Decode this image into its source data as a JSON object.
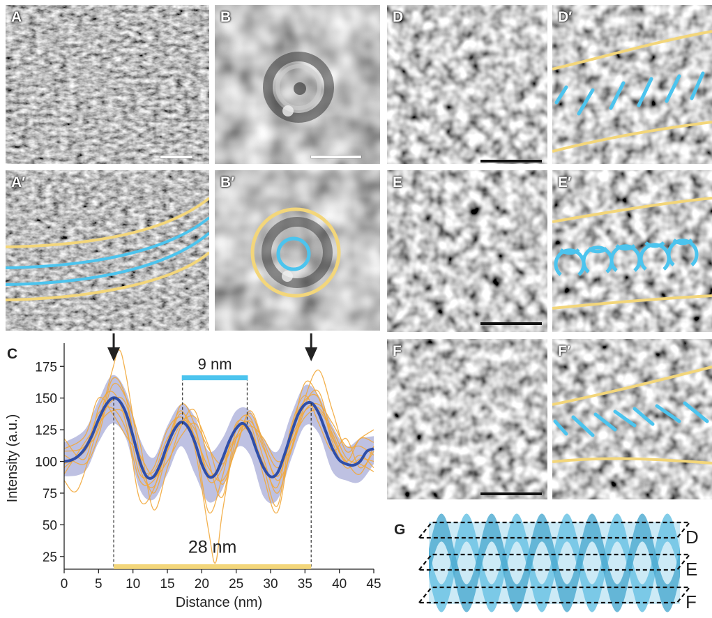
{
  "panel_labels": {
    "A": "A",
    "A_prime": "A′",
    "B": "B",
    "B_prime": "B′",
    "C": "C",
    "D": "D",
    "D_prime": "D′",
    "E": "E",
    "E_prime": "E′",
    "F": "F",
    "F_prime": "F′",
    "G": "G"
  },
  "colors": {
    "yellow": "#f3d67a",
    "blue": "#4cc4ee",
    "mean_line": "#2f4ea8",
    "band": "#a8acd8",
    "traces": "#f2a93b",
    "model": "#6cc3e4"
  },
  "chart_data": {
    "type": "line",
    "xlabel": "Distance (nm)",
    "ylabel": "Intensity (a.u.)",
    "xlim": [
      0,
      45
    ],
    "ylim": [
      15,
      190
    ],
    "xticks": [
      0,
      5,
      10,
      15,
      20,
      25,
      30,
      35,
      40,
      45
    ],
    "yticks": [
      25,
      50,
      75,
      100,
      125,
      150,
      175
    ],
    "series": [
      {
        "role": "mean",
        "x": [
          0,
          1,
          2,
          3,
          4,
          5,
          6,
          7,
          8,
          9,
          10,
          11,
          12,
          13,
          14,
          15,
          16,
          17,
          18,
          19,
          20,
          21,
          22,
          23,
          24,
          25,
          26,
          27,
          28,
          29,
          30,
          31,
          32,
          33,
          34,
          35,
          36,
          37,
          38,
          39,
          40,
          41,
          42,
          43,
          44,
          45
        ],
        "y": [
          100,
          101,
          104,
          110,
          120,
          133,
          144,
          150,
          148,
          138,
          120,
          100,
          88,
          88,
          98,
          113,
          125,
          131,
          127,
          115,
          98,
          88,
          90,
          102,
          116,
          126,
          130,
          123,
          108,
          95,
          88,
          91,
          105,
          122,
          137,
          145,
          146,
          138,
          124,
          110,
          101,
          98,
          97,
          100,
          108,
          110
        ]
      },
      {
        "role": "sd-band",
        "x": [
          0,
          3,
          5,
          7,
          9,
          11,
          13,
          15,
          17,
          19,
          21,
          23,
          25,
          27,
          29,
          31,
          33,
          35,
          37,
          39,
          41,
          43,
          45
        ],
        "upper": [
          115,
          125,
          148,
          168,
          155,
          118,
          103,
          128,
          145,
          135,
          108,
          118,
          140,
          140,
          118,
          108,
          137,
          160,
          152,
          128,
          112,
          118,
          120
        ],
        "lower": [
          88,
          92,
          115,
          130,
          118,
          78,
          70,
          90,
          112,
          90,
          68,
          78,
          110,
          105,
          72,
          70,
          102,
          128,
          122,
          92,
          85,
          84,
          98
        ]
      }
    ],
    "traces": [
      [
        [
          0,
          98
        ],
        [
          3,
          108
        ],
        [
          5,
          132
        ],
        [
          7,
          172
        ],
        [
          8,
          188
        ],
        [
          9,
          168
        ],
        [
          11,
          105
        ],
        [
          13,
          75
        ],
        [
          15,
          108
        ],
        [
          17,
          145
        ],
        [
          19,
          128
        ],
        [
          21,
          85
        ],
        [
          23,
          95
        ],
        [
          25,
          128
        ],
        [
          27,
          135
        ],
        [
          29,
          102
        ],
        [
          31,
          75
        ],
        [
          33,
          110
        ],
        [
          35,
          150
        ],
        [
          37,
          172
        ],
        [
          39,
          140
        ],
        [
          41,
          108
        ],
        [
          43,
          118
        ],
        [
          45,
          125
        ]
      ],
      [
        [
          0,
          118
        ],
        [
          3,
          102
        ],
        [
          5,
          142
        ],
        [
          7,
          155
        ],
        [
          9,
          130
        ],
        [
          11,
          70
        ],
        [
          13,
          78
        ],
        [
          15,
          115
        ],
        [
          17,
          140
        ],
        [
          19,
          110
        ],
        [
          21,
          45
        ],
        [
          22,
          20
        ],
        [
          23,
          60
        ],
        [
          25,
          118
        ],
        [
          27,
          130
        ],
        [
          29,
          88
        ],
        [
          31,
          60
        ],
        [
          33,
          118
        ],
        [
          35,
          162
        ],
        [
          37,
          150
        ],
        [
          39,
          118
        ],
        [
          41,
          100
        ],
        [
          43,
          90
        ],
        [
          45,
          112
        ]
      ],
      [
        [
          0,
          90
        ],
        [
          3,
          115
        ],
        [
          5,
          130
        ],
        [
          7,
          140
        ],
        [
          9,
          135
        ],
        [
          11,
          90
        ],
        [
          13,
          95
        ],
        [
          15,
          125
        ],
        [
          17,
          135
        ],
        [
          19,
          120
        ],
        [
          21,
          95
        ],
        [
          23,
          85
        ],
        [
          25,
          110
        ],
        [
          27,
          140
        ],
        [
          29,
          115
        ],
        [
          31,
          95
        ],
        [
          33,
          115
        ],
        [
          35,
          135
        ],
        [
          37,
          140
        ],
        [
          39,
          122
        ],
        [
          41,
          98
        ],
        [
          43,
          105
        ],
        [
          45,
          95
        ]
      ],
      [
        [
          0,
          105
        ],
        [
          3,
          98
        ],
        [
          5,
          120
        ],
        [
          7,
          160
        ],
        [
          9,
          150
        ],
        [
          11,
          115
        ],
        [
          13,
          62
        ],
        [
          15,
          95
        ],
        [
          17,
          128
        ],
        [
          19,
          140
        ],
        [
          21,
          100
        ],
        [
          23,
          72
        ],
        [
          25,
          125
        ],
        [
          27,
          122
        ],
        [
          29,
          98
        ],
        [
          31,
          80
        ],
        [
          33,
          128
        ],
        [
          35,
          152
        ],
        [
          37,
          130
        ],
        [
          39,
          108
        ],
        [
          41,
          118
        ],
        [
          43,
          95
        ],
        [
          45,
          108
        ]
      ],
      [
        [
          0,
          110
        ],
        [
          3,
          120
        ],
        [
          5,
          150
        ],
        [
          7,
          138
        ],
        [
          9,
          120
        ],
        [
          11,
          105
        ],
        [
          13,
          88
        ],
        [
          15,
          100
        ],
        [
          17,
          120
        ],
        [
          19,
          130
        ],
        [
          21,
          110
        ],
        [
          23,
          98
        ],
        [
          25,
          118
        ],
        [
          27,
          128
        ],
        [
          29,
          118
        ],
        [
          31,
          100
        ],
        [
          33,
          110
        ],
        [
          35,
          140
        ],
        [
          37,
          145
        ],
        [
          39,
          130
        ],
        [
          41,
          112
        ],
        [
          43,
          112
        ],
        [
          45,
          105
        ]
      ],
      [
        [
          0,
          95
        ],
        [
          3,
          110
        ],
        [
          5,
          125
        ],
        [
          7,
          165
        ],
        [
          9,
          150
        ],
        [
          11,
          95
        ],
        [
          13,
          80
        ],
        [
          15,
          112
        ],
        [
          17,
          138
        ],
        [
          19,
          118
        ],
        [
          21,
          60
        ],
        [
          23,
          88
        ],
        [
          25,
          130
        ],
        [
          27,
          125
        ],
        [
          29,
          95
        ],
        [
          31,
          65
        ],
        [
          33,
          125
        ],
        [
          35,
          148
        ],
        [
          37,
          150
        ],
        [
          39,
          115
        ],
        [
          41,
          95
        ],
        [
          43,
          102
        ],
        [
          45,
          100
        ]
      ],
      [
        [
          0,
          85
        ],
        [
          2,
          78
        ],
        [
          5,
          128
        ],
        [
          7,
          148
        ],
        [
          9,
          145
        ],
        [
          11,
          98
        ],
        [
          13,
          92
        ],
        [
          15,
          118
        ],
        [
          17,
          132
        ],
        [
          19,
          125
        ],
        [
          21,
          90
        ],
        [
          23,
          100
        ],
        [
          25,
          120
        ],
        [
          27,
          132
        ],
        [
          29,
          110
        ],
        [
          31,
          88
        ],
        [
          33,
          118
        ],
        [
          35,
          140
        ],
        [
          37,
          142
        ],
        [
          39,
          125
        ],
        [
          41,
          103
        ],
        [
          43,
          98
        ],
        [
          45,
          92
        ]
      ],
      [
        [
          0,
          108
        ],
        [
          3,
          112
        ],
        [
          5,
          138
        ],
        [
          7,
          142
        ],
        [
          9,
          125
        ],
        [
          11,
          85
        ],
        [
          13,
          85
        ],
        [
          15,
          108
        ],
        [
          17,
          130
        ],
        [
          19,
          135
        ],
        [
          21,
          112
        ],
        [
          23,
          82
        ],
        [
          25,
          112
        ],
        [
          27,
          138
        ],
        [
          29,
          112
        ],
        [
          31,
          85
        ],
        [
          33,
          108
        ],
        [
          35,
          145
        ],
        [
          37,
          155
        ],
        [
          39,
          120
        ],
        [
          41,
          100
        ],
        [
          43,
          118
        ],
        [
          45,
          115
        ]
      ]
    ],
    "annotations": {
      "short_period": "9 nm",
      "long_period": "28 nm",
      "short_span": [
        17.2,
        26.6
      ],
      "long_span": [
        7.2,
        35.9
      ],
      "arrows_x": [
        7.2,
        35.9
      ]
    }
  },
  "model_planes": [
    "D",
    "E",
    "F"
  ]
}
